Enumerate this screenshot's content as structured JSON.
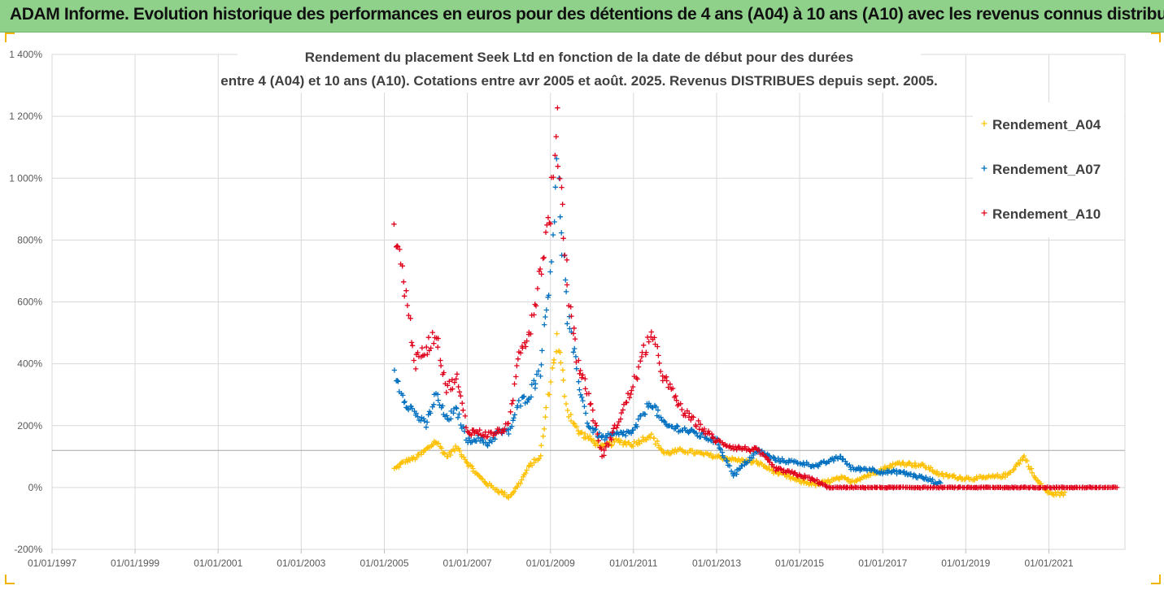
{
  "banner": {
    "title": "ADAM Informe. Evolution historique des performances en euros pour des détentions de 4 ans (A04) à 10 ans (A10) avec les revenus connus distribués"
  },
  "chart_data": {
    "type": "scatter",
    "title_line1": "Rendement du placement Seek Ltd en fonction de la date de début pour des durées",
    "title_line2": "entre 4 (A04) et 10 ans (A10). Cotations entre avr 2005 et août. 2025. Revenus DISTRIBUES depuis sept. 2005.",
    "xlabel": "",
    "ylabel": "",
    "x_ticks": [
      "01/01/1997",
      "01/01/1999",
      "01/01/2001",
      "01/01/2003",
      "01/01/2005",
      "01/01/2007",
      "01/01/2009",
      "01/01/2011",
      "01/01/2013",
      "01/01/2015",
      "01/01/2017",
      "01/01/2019",
      "01/01/2021"
    ],
    "y_ticks": [
      "1 400%",
      "1 200%",
      "1 000%",
      "800%",
      "600%",
      "400%",
      "200%",
      "0%",
      "-200%"
    ],
    "xlim": [
      "1997-01-01",
      "2022-11-01"
    ],
    "ylim": [
      -200,
      1400
    ],
    "grid": true,
    "reference_line_y": 120,
    "legend_position": "top-right",
    "marker": "+",
    "series": [
      {
        "name": "Rendement_A04",
        "color": "#ffc000",
        "points": [
          [
            "2005-04-01",
            60
          ],
          [
            "2005-07-01",
            85
          ],
          [
            "2005-10-01",
            95
          ],
          [
            "2006-01-01",
            120
          ],
          [
            "2006-04-01",
            150
          ],
          [
            "2006-07-01",
            100
          ],
          [
            "2006-10-01",
            130
          ],
          [
            "2007-01-01",
            80
          ],
          [
            "2007-04-01",
            40
          ],
          [
            "2007-07-01",
            10
          ],
          [
            "2007-10-01",
            -10
          ],
          [
            "2008-01-01",
            -30
          ],
          [
            "2008-04-01",
            10
          ],
          [
            "2008-07-01",
            70
          ],
          [
            "2008-10-01",
            100
          ],
          [
            "2009-01-01",
            350
          ],
          [
            "2009-03-01",
            480
          ],
          [
            "2009-06-01",
            250
          ],
          [
            "2009-09-01",
            180
          ],
          [
            "2009-12-01",
            160
          ],
          [
            "2010-04-01",
            130
          ],
          [
            "2010-08-01",
            150
          ],
          [
            "2011-01-01",
            140
          ],
          [
            "2011-06-01",
            170
          ],
          [
            "2011-10-01",
            110
          ],
          [
            "2012-03-01",
            120
          ],
          [
            "2012-08-01",
            110
          ],
          [
            "2013-01-01",
            100
          ],
          [
            "2013-06-01",
            90
          ],
          [
            "2014-01-01",
            80
          ],
          [
            "2014-06-01",
            50
          ],
          [
            "2015-01-01",
            20
          ],
          [
            "2015-06-01",
            10
          ],
          [
            "2016-01-01",
            30
          ],
          [
            "2016-04-01",
            20
          ],
          [
            "2016-09-01",
            40
          ],
          [
            "2017-01-01",
            60
          ],
          [
            "2017-06-01",
            80
          ],
          [
            "2018-01-01",
            70
          ],
          [
            "2018-06-01",
            40
          ],
          [
            "2019-01-01",
            30
          ],
          [
            "2019-06-01",
            30
          ],
          [
            "2020-01-01",
            40
          ],
          [
            "2020-06-01",
            100
          ],
          [
            "2020-09-01",
            30
          ],
          [
            "2021-01-01",
            -20
          ],
          [
            "2021-06-01",
            -20
          ]
        ]
      },
      {
        "name": "Rendement_A07",
        "color": "#0070c0",
        "points": [
          [
            "2005-04-01",
            370
          ],
          [
            "2005-07-01",
            280
          ],
          [
            "2005-10-01",
            240
          ],
          [
            "2006-01-01",
            200
          ],
          [
            "2006-04-01",
            300
          ],
          [
            "2006-07-01",
            220
          ],
          [
            "2006-10-01",
            250
          ],
          [
            "2007-01-01",
            150
          ],
          [
            "2007-04-01",
            160
          ],
          [
            "2007-07-01",
            140
          ],
          [
            "2007-10-01",
            180
          ],
          [
            "2008-01-01",
            180
          ],
          [
            "2008-04-01",
            270
          ],
          [
            "2008-07-01",
            300
          ],
          [
            "2008-10-01",
            380
          ],
          [
            "2009-01-01",
            700
          ],
          [
            "2009-03-01",
            1020
          ],
          [
            "2009-06-01",
            550
          ],
          [
            "2009-09-01",
            350
          ],
          [
            "2009-12-01",
            200
          ],
          [
            "2010-04-01",
            160
          ],
          [
            "2010-08-01",
            170
          ],
          [
            "2011-01-01",
            180
          ],
          [
            "2011-06-01",
            280
          ],
          [
            "2011-10-01",
            200
          ],
          [
            "2012-03-01",
            190
          ],
          [
            "2012-08-01",
            170
          ],
          [
            "2013-01-01",
            150
          ],
          [
            "2013-06-01",
            40
          ],
          [
            "2014-01-01",
            120
          ],
          [
            "2014-06-01",
            90
          ],
          [
            "2015-01-01",
            80
          ],
          [
            "2015-06-01",
            70
          ],
          [
            "2016-01-01",
            100
          ],
          [
            "2016-04-01",
            60
          ],
          [
            "2016-09-01",
            60
          ],
          [
            "2017-01-01",
            50
          ],
          [
            "2017-06-01",
            50
          ],
          [
            "2018-01-01",
            30
          ],
          [
            "2018-06-01",
            10
          ]
        ]
      },
      {
        "name": "Rendement_A10",
        "color": "#e0001b",
        "points": [
          [
            "2005-04-01",
            850
          ],
          [
            "2005-07-01",
            650
          ],
          [
            "2005-10-01",
            400
          ],
          [
            "2006-01-01",
            450
          ],
          [
            "2006-04-01",
            500
          ],
          [
            "2006-07-01",
            320
          ],
          [
            "2006-10-01",
            350
          ],
          [
            "2007-01-01",
            180
          ],
          [
            "2007-04-01",
            180
          ],
          [
            "2007-07-01",
            170
          ],
          [
            "2007-10-01",
            180
          ],
          [
            "2008-01-01",
            200
          ],
          [
            "2008-04-01",
            450
          ],
          [
            "2008-07-01",
            500
          ],
          [
            "2008-10-01",
            700
          ],
          [
            "2009-01-01",
            900
          ],
          [
            "2009-03-01",
            1160
          ],
          [
            "2009-06-01",
            650
          ],
          [
            "2009-09-01",
            400
          ],
          [
            "2009-12-01",
            300
          ],
          [
            "2010-04-01",
            100
          ],
          [
            "2010-08-01",
            200
          ],
          [
            "2011-01-01",
            330
          ],
          [
            "2011-06-01",
            500
          ],
          [
            "2011-10-01",
            350
          ],
          [
            "2012-03-01",
            250
          ],
          [
            "2012-08-01",
            200
          ],
          [
            "2013-01-01",
            150
          ],
          [
            "2013-06-01",
            130
          ],
          [
            "2014-01-01",
            120
          ],
          [
            "2014-06-01",
            60
          ],
          [
            "2015-01-01",
            40
          ],
          [
            "2015-06-01",
            20
          ],
          [
            "2015-09-01",
            0
          ],
          [
            "2016-06-01",
            0
          ],
          [
            "2017-06-01",
            0
          ],
          [
            "2018-06-01",
            0
          ],
          [
            "2019-06-01",
            0
          ],
          [
            "2020-06-01",
            0
          ],
          [
            "2021-06-01",
            0
          ],
          [
            "2022-09-01",
            0
          ]
        ]
      }
    ]
  }
}
